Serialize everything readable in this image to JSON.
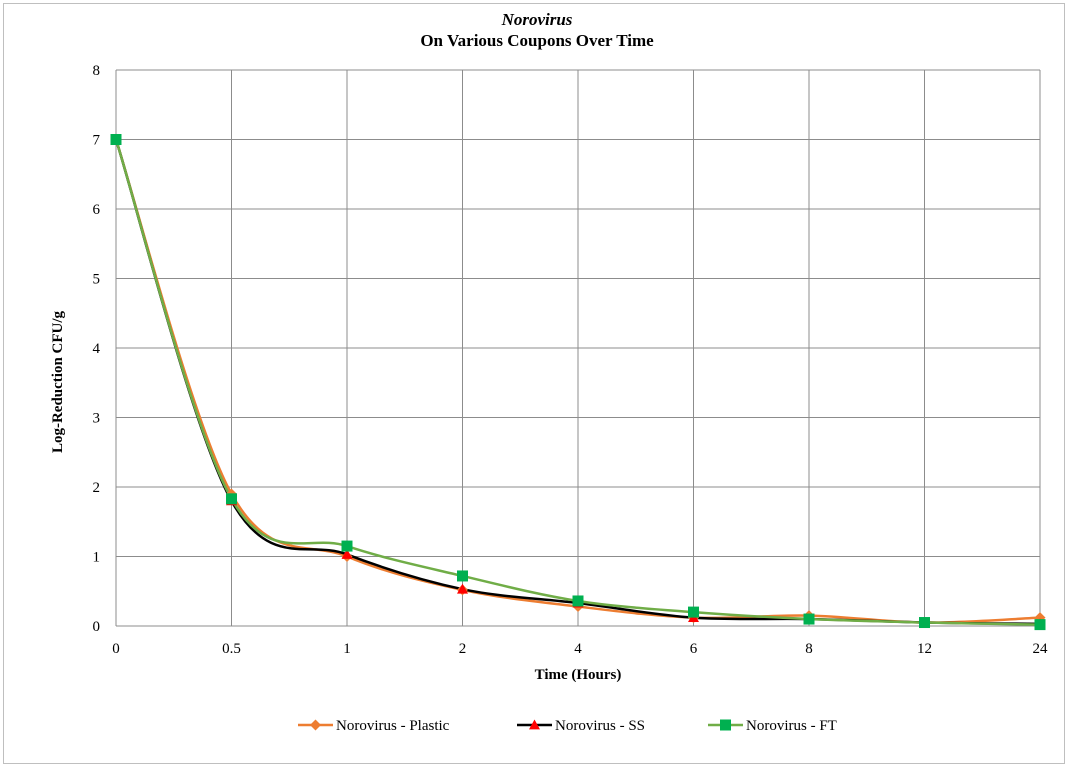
{
  "chart_data": {
    "type": "line",
    "title_line1": "Norovirus",
    "title_line2": "On Various Coupons Over Time",
    "xlabel": "Time (Hours)",
    "ylabel": "Log-Reduction CFU/g",
    "categories": [
      "0",
      "0.5",
      "1",
      "2",
      "4",
      "6",
      "8",
      "12",
      "24"
    ],
    "yticks": [
      "0",
      "1",
      "2",
      "3",
      "4",
      "5",
      "6",
      "7",
      "8"
    ],
    "ylim": [
      0,
      8
    ],
    "grid": true,
    "smooth": true,
    "legend_position": "bottom",
    "series": [
      {
        "name": "Norovirus - Plastic",
        "color": "#ED7D31",
        "marker": "diamond",
        "values": [
          7.0,
          1.9,
          1.0,
          0.52,
          0.28,
          0.12,
          0.15,
          0.05,
          0.12
        ]
      },
      {
        "name": "Norovirus - SS",
        "color": "#000000",
        "marker_color": "#FF0000",
        "marker": "triangle",
        "values": [
          7.0,
          1.8,
          1.03,
          0.53,
          0.33,
          0.12,
          0.1,
          0.05,
          0.03
        ]
      },
      {
        "name": "Norovirus - FT",
        "color": "#70AD47",
        "marker_color": "#00B050",
        "marker": "square",
        "values": [
          7.0,
          1.83,
          1.15,
          0.72,
          0.36,
          0.2,
          0.1,
          0.05,
          0.02
        ]
      }
    ]
  }
}
